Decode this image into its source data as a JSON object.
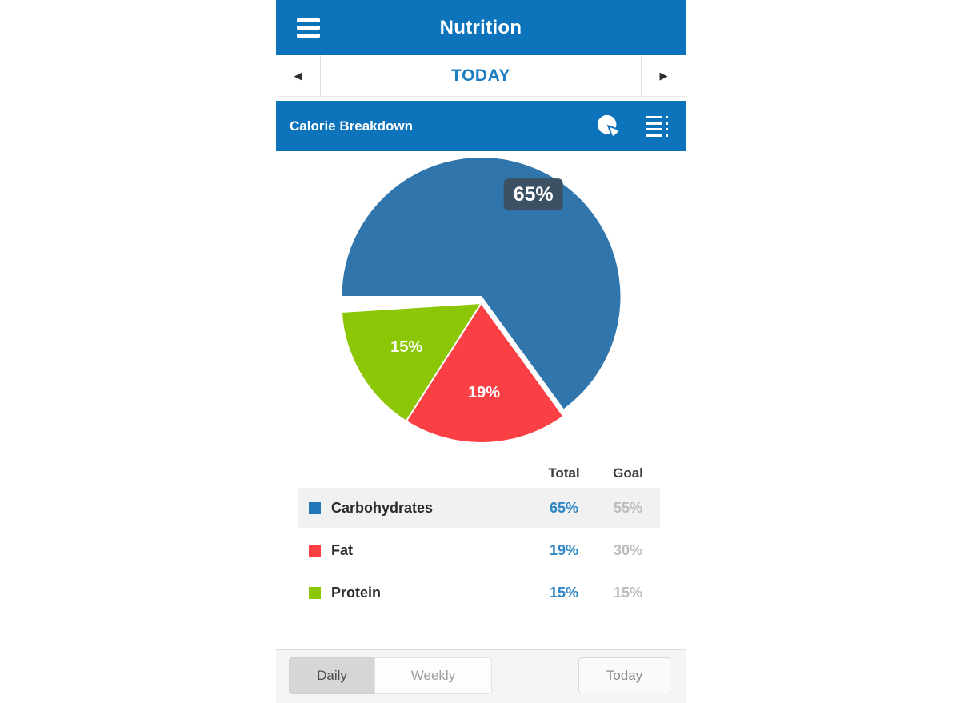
{
  "header": {
    "title": "Nutrition"
  },
  "date_nav": {
    "label": "TODAY"
  },
  "section": {
    "title": "Calorie Breakdown"
  },
  "chart_data": {
    "type": "pie",
    "title": "Calorie Breakdown",
    "start_angle_deg": 180,
    "direction": "clockwise",
    "unit": "%",
    "series": [
      {
        "name": "Carbohydrates",
        "value": 65,
        "label": "65%",
        "color": "#3076ad"
      },
      {
        "name": "Fat",
        "value": 19,
        "label": "19%",
        "color": "#fb4045"
      },
      {
        "name": "Protein",
        "value": 15,
        "label": "15%",
        "color": "#8cc707"
      }
    ],
    "legend_position": "table-below"
  },
  "table": {
    "columns": {
      "total": "Total",
      "goal": "Goal"
    },
    "rows": [
      {
        "name": "Carbohydrates",
        "swatch_color": "#2277b8",
        "total": "65%",
        "goal": "55%",
        "highlighted": true
      },
      {
        "name": "Fat",
        "swatch_color": "#fb4045",
        "total": "19%",
        "goal": "30%",
        "highlighted": false
      },
      {
        "name": "Protein",
        "swatch_color": "#8cc707",
        "total": "15%",
        "goal": "15%",
        "highlighted": false
      }
    ]
  },
  "footer": {
    "segments": [
      {
        "label": "Daily",
        "selected": true
      },
      {
        "label": "Weekly",
        "selected": false
      }
    ],
    "today_button": "Today"
  },
  "icons": {
    "nav_prev": "◀",
    "nav_next": "▶"
  },
  "colors": {
    "header_blue": "#0d73ba",
    "accent_blue": "#1b7dc2",
    "total_value_blue": "#2e86c6",
    "goal_value_gray": "#bcbcbc",
    "label_badge_bg": "#3d5164",
    "row_highlight": "#f1f1f1"
  }
}
